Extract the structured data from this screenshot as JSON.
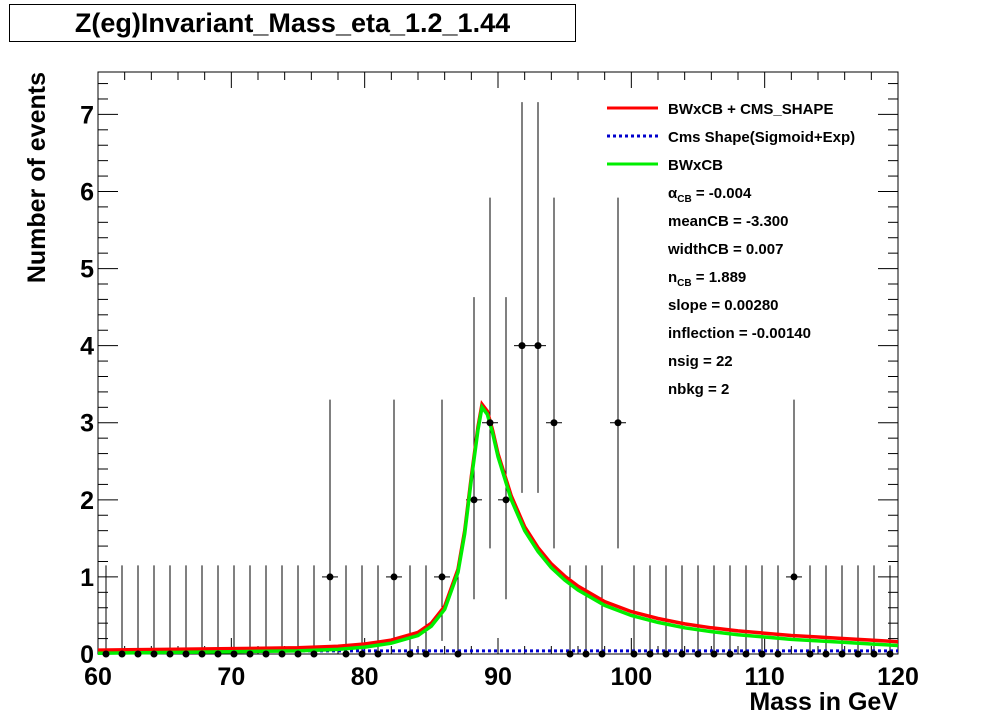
{
  "chart_data": {
    "type": "scatter",
    "title": "Z(eg)Invariant_Mass_eta_1.2_1.44",
    "xlabel": "Mass in GeV",
    "ylabel": "Number of events",
    "xlim": [
      60,
      120
    ],
    "ylim": [
      0,
      7.55
    ],
    "x_ticks": [
      "60",
      "70",
      "80",
      "90",
      "100",
      "110",
      "120"
    ],
    "y_ticks": [
      "0",
      "1",
      "2",
      "3",
      "4",
      "5",
      "6",
      "7"
    ],
    "bin_width": 1.2,
    "data_points": {
      "x": [
        60.6,
        61.8,
        63.0,
        64.2,
        65.4,
        66.6,
        67.8,
        69.0,
        70.2,
        71.4,
        72.6,
        73.8,
        75.0,
        76.2,
        77.4,
        78.6,
        79.8,
        81.0,
        82.2,
        83.4,
        84.6,
        85.8,
        87.0,
        88.2,
        89.4,
        90.6,
        91.8,
        93.0,
        94.2,
        95.4,
        96.6,
        97.8,
        99.0,
        100.2,
        101.4,
        102.6,
        103.8,
        105.0,
        106.2,
        107.4,
        108.6,
        109.8,
        111.0,
        112.2,
        113.4,
        114.6,
        115.8,
        117.0,
        118.2,
        119.4
      ],
      "y": [
        0,
        0,
        0,
        0,
        0,
        0,
        0,
        0,
        0,
        0,
        0,
        0,
        0,
        0,
        1,
        0,
        0,
        0,
        1,
        0,
        0,
        1,
        0,
        2,
        3,
        2,
        4,
        4,
        3,
        0,
        0,
        0,
        3,
        0,
        0,
        0,
        0,
        0,
        0,
        0,
        0,
        0,
        0,
        1,
        0,
        0,
        0,
        0,
        0,
        0
      ],
      "err_up": [
        1.15,
        1.15,
        1.15,
        1.15,
        1.15,
        1.15,
        1.15,
        1.15,
        1.15,
        1.15,
        1.15,
        1.15,
        1.15,
        1.15,
        2.3,
        1.15,
        1.15,
        1.15,
        2.3,
        1.15,
        1.15,
        2.3,
        1.15,
        2.63,
        2.92,
        2.63,
        3.16,
        3.16,
        2.92,
        1.15,
        1.15,
        1.15,
        2.92,
        1.15,
        1.15,
        1.15,
        1.15,
        1.15,
        1.15,
        1.15,
        1.15,
        1.15,
        1.15,
        2.3,
        1.15,
        1.15,
        1.15,
        1.15,
        1.15,
        1.15
      ],
      "err_down": [
        0,
        0,
        0,
        0,
        0,
        0,
        0,
        0,
        0,
        0,
        0,
        0,
        0,
        0,
        0.83,
        0,
        0,
        0,
        0.83,
        0,
        0,
        0.83,
        0,
        1.29,
        1.63,
        1.29,
        1.91,
        1.91,
        1.63,
        0,
        0,
        0,
        1.63,
        0,
        0,
        0,
        0,
        0,
        0,
        0,
        0,
        0,
        0,
        0.83,
        0,
        0,
        0,
        0,
        0,
        0
      ]
    },
    "series": [
      {
        "name": "BWxCB + CMS_SHAPE",
        "color": "#ff0000",
        "style": "solid",
        "x": [
          60,
          65,
          70,
          75,
          78,
          80,
          82,
          84,
          85,
          86,
          87,
          87.5,
          88,
          88.5,
          88.8,
          89.2,
          89.6,
          90,
          91,
          92,
          93,
          94,
          95,
          96,
          98,
          100,
          102,
          104,
          106,
          108,
          110,
          112,
          114,
          116,
          118,
          120
        ],
        "y": [
          0.05,
          0.06,
          0.07,
          0.08,
          0.1,
          0.13,
          0.18,
          0.28,
          0.4,
          0.62,
          1.1,
          1.6,
          2.3,
          2.95,
          3.24,
          3.15,
          2.9,
          2.6,
          2.05,
          1.65,
          1.38,
          1.17,
          1.01,
          0.88,
          0.68,
          0.55,
          0.46,
          0.39,
          0.34,
          0.3,
          0.27,
          0.24,
          0.22,
          0.2,
          0.18,
          0.16
        ]
      },
      {
        "name": "Cms Shape(Sigmoid+Exp)",
        "color": "#0000cc",
        "style": "dotted",
        "x": [
          60,
          70,
          80,
          90,
          100,
          110,
          120
        ],
        "y": [
          0.04,
          0.04,
          0.04,
          0.04,
          0.04,
          0.04,
          0.04
        ]
      },
      {
        "name": "BWxCB",
        "color": "#00ee00",
        "style": "solid",
        "x": [
          60,
          65,
          70,
          75,
          78,
          80,
          82,
          84,
          85,
          86,
          87,
          87.5,
          88,
          88.5,
          88.8,
          89.2,
          89.6,
          90,
          91,
          92,
          93,
          94,
          95,
          96,
          98,
          100,
          102,
          104,
          106,
          108,
          110,
          112,
          114,
          116,
          118,
          120
        ],
        "y": [
          0.01,
          0.02,
          0.03,
          0.04,
          0.06,
          0.09,
          0.14,
          0.24,
          0.36,
          0.58,
          1.06,
          1.56,
          2.26,
          2.91,
          3.2,
          3.11,
          2.86,
          2.56,
          2.0,
          1.6,
          1.33,
          1.12,
          0.96,
          0.83,
          0.63,
          0.5,
          0.41,
          0.34,
          0.29,
          0.25,
          0.22,
          0.19,
          0.17,
          0.15,
          0.13,
          0.11
        ]
      }
    ],
    "legend_position": "top-right",
    "annotations": [
      {
        "label": "α",
        "sub": "CB",
        "text": " = -0.004"
      },
      {
        "label": "meanCB",
        "sub": "",
        "text": " = -3.300"
      },
      {
        "label": "widthCB",
        "sub": "",
        "text": " = 0.007"
      },
      {
        "label": "n",
        "sub": "CB",
        "text": " = 1.889"
      },
      {
        "label": "slope",
        "sub": "",
        "text": " = 0.00280"
      },
      {
        "label": "inflection",
        "sub": "",
        "text": " = -0.00140"
      },
      {
        "label": "nsig",
        "sub": "",
        "text": " = 22"
      },
      {
        "label": "nbkg",
        "sub": "",
        "text": " = 2"
      }
    ]
  }
}
